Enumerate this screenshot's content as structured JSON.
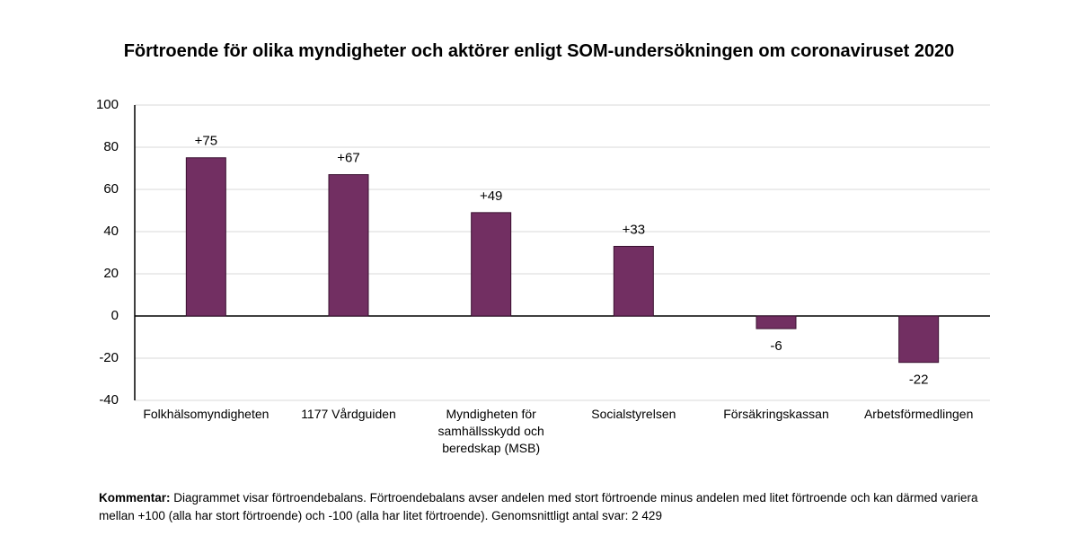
{
  "chart_data": {
    "type": "bar",
    "title": "Förtroende för olika myndigheter och aktörer enligt SOM-undersökningen om coronaviruset 2020",
    "categories": [
      "Folkhälsomyndigheten",
      "1177 Vårdguiden",
      "Myndigheten för samhällsskydd och beredskap (MSB)",
      "Socialstyrelsen",
      "Försäkringskassan",
      "Arbetsförmedlingen"
    ],
    "values": [
      75,
      67,
      49,
      33,
      -6,
      -22
    ],
    "value_labels": [
      "+75",
      "+67",
      "+49",
      "+33",
      "-6",
      "-22"
    ],
    "color": "#722f62",
    "ylim": [
      -40,
      100
    ],
    "yticks": [
      -40,
      -20,
      0,
      20,
      40,
      60,
      80,
      100
    ],
    "grid": true,
    "comment_label": "Kommentar:",
    "comment": "Diagrammet visar förtroendebalans. Förtroendebalans avser andelen med stort förtroende minus andelen med litet förtroende och kan därmed variera mellan +100 (alla har stort förtroende) och -100 (alla har litet förtroende).  Genomsnittligt antal svar: 2 429"
  }
}
